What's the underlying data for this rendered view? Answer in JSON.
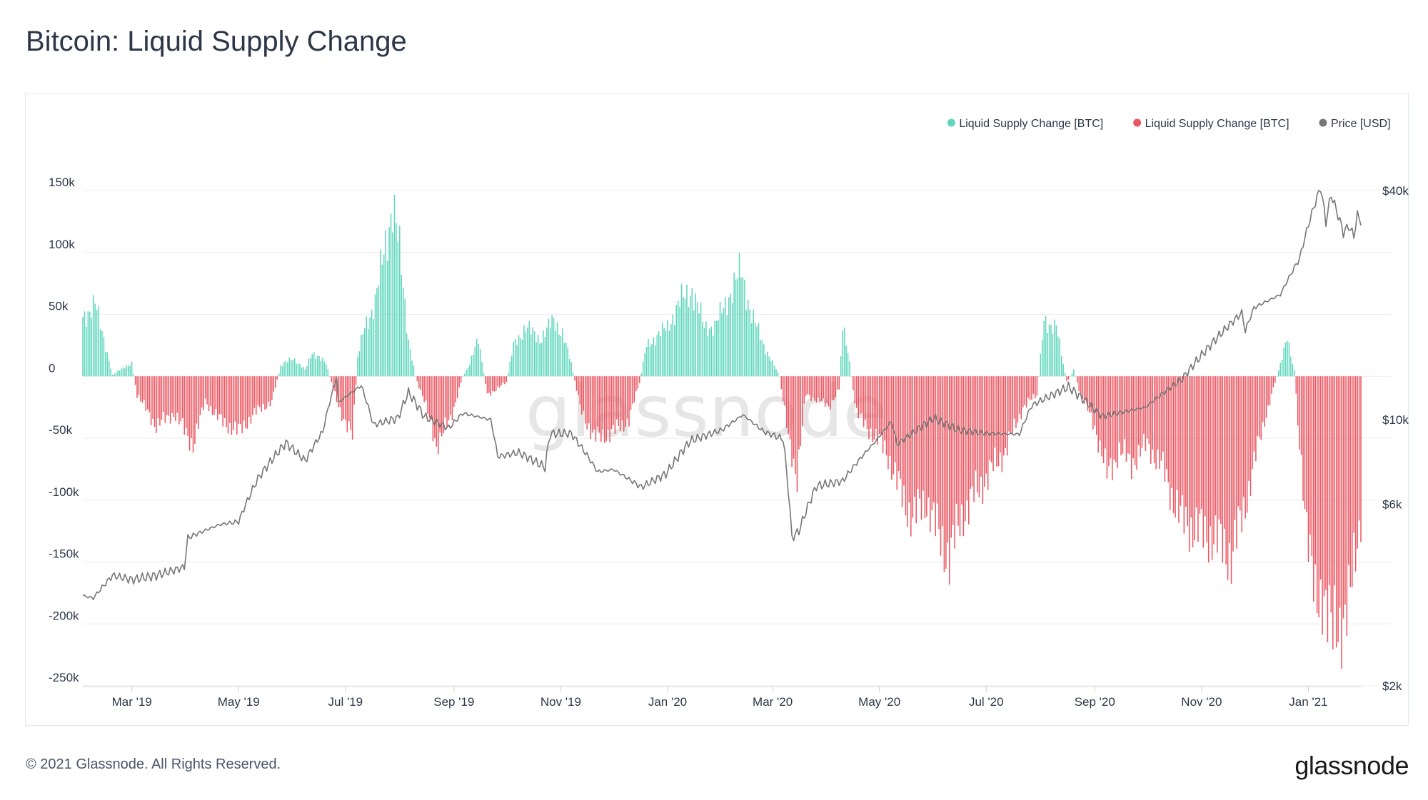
{
  "page": {
    "title": "Bitcoin: Liquid Supply Change",
    "footer": "© 2021 Glassnode. All Rights Reserved.",
    "logo": "glassnode",
    "watermark": "glassnode"
  },
  "colors": {
    "positive": "#5ed6bc",
    "negative": "#eb5560",
    "price": "#777777"
  },
  "chart_data": {
    "type": "bar",
    "title": "Bitcoin: Liquid Supply Change",
    "legend_position": "top-right",
    "grid": true,
    "series": [
      {
        "name": "Liquid Supply Change [BTC]",
        "color": "#5ed6bc",
        "kind": "bar",
        "sign": "positive"
      },
      {
        "name": "Liquid Supply Change [BTC]",
        "color": "#eb5560",
        "kind": "bar",
        "sign": "negative"
      },
      {
        "name": "Price [USD]",
        "color": "#777777",
        "kind": "line"
      }
    ],
    "y_left": {
      "ylim": [
        -250000,
        150000
      ],
      "ticks": [
        "150k",
        "100k",
        "50k",
        "0",
        "-50k",
        "-100k",
        "-150k",
        "-200k",
        "-250k"
      ]
    },
    "y_right": {
      "scale": "log",
      "ylim": [
        2000,
        40000
      ],
      "ticks": [
        "$40k",
        "$10k",
        "$6k",
        "$2k"
      ]
    },
    "x_ticks": [
      "Mar '19",
      "May '19",
      "Jul '19",
      "Sep '19",
      "Nov '19",
      "Jan '20",
      "Mar '20",
      "May '20",
      "Jul '20",
      "Sep '20",
      "Nov '20",
      "Jan '21"
    ],
    "x_range": [
      "2019-02-01",
      "2021-01-31"
    ],
    "liquid_supply_change_keypoints": [
      [
        "2019-02-01",
        48000
      ],
      [
        "2019-02-08",
        58000
      ],
      [
        "2019-02-14",
        25000
      ],
      [
        "2019-02-18",
        1000
      ],
      [
        "2019-02-25",
        8000
      ],
      [
        "2019-03-01",
        10000
      ],
      [
        "2019-03-04",
        -15000
      ],
      [
        "2019-03-15",
        -40000
      ],
      [
        "2019-03-25",
        -30000
      ],
      [
        "2019-04-05",
        -55000
      ],
      [
        "2019-04-12",
        -20000
      ],
      [
        "2019-04-20",
        -35000
      ],
      [
        "2019-05-01",
        -45000
      ],
      [
        "2019-05-10",
        -30000
      ],
      [
        "2019-05-20",
        -20000
      ],
      [
        "2019-05-25",
        8000
      ],
      [
        "2019-06-01",
        15000
      ],
      [
        "2019-06-08",
        5000
      ],
      [
        "2019-06-12",
        20000
      ],
      [
        "2019-06-20",
        10000
      ],
      [
        "2019-06-26",
        -20000
      ],
      [
        "2019-07-05",
        -50000
      ],
      [
        "2019-07-08",
        15000
      ],
      [
        "2019-07-12",
        40000
      ],
      [
        "2019-07-18",
        60000
      ],
      [
        "2019-07-23",
        100000
      ],
      [
        "2019-07-28",
        140000
      ],
      [
        "2019-08-01",
        100000
      ],
      [
        "2019-08-06",
        30000
      ],
      [
        "2019-08-10",
        0
      ],
      [
        "2019-08-15",
        -20000
      ],
      [
        "2019-08-22",
        -55000
      ],
      [
        "2019-08-30",
        -35000
      ],
      [
        "2019-09-06",
        0
      ],
      [
        "2019-09-10",
        10000
      ],
      [
        "2019-09-15",
        30000
      ],
      [
        "2019-09-20",
        -15000
      ],
      [
        "2019-10-01",
        -5000
      ],
      [
        "2019-10-05",
        25000
      ],
      [
        "2019-10-12",
        40000
      ],
      [
        "2019-10-20",
        30000
      ],
      [
        "2019-10-28",
        45000
      ],
      [
        "2019-11-02",
        35000
      ],
      [
        "2019-11-07",
        10000
      ],
      [
        "2019-11-12",
        -25000
      ],
      [
        "2019-11-20",
        -50000
      ],
      [
        "2019-12-01",
        -45000
      ],
      [
        "2019-12-10",
        -35000
      ],
      [
        "2019-12-16",
        -5000
      ],
      [
        "2019-12-20",
        25000
      ],
      [
        "2020-01-01",
        40000
      ],
      [
        "2020-01-08",
        60000
      ],
      [
        "2020-01-15",
        70000
      ],
      [
        "2020-01-22",
        40000
      ],
      [
        "2020-01-28",
        40000
      ],
      [
        "2020-02-05",
        65000
      ],
      [
        "2020-02-12",
        85000
      ],
      [
        "2020-02-18",
        50000
      ],
      [
        "2020-02-25",
        25000
      ],
      [
        "2020-03-05",
        0
      ],
      [
        "2020-03-10",
        -50000
      ],
      [
        "2020-03-15",
        -80000
      ],
      [
        "2020-03-20",
        -15000
      ],
      [
        "2020-03-28",
        -20000
      ],
      [
        "2020-04-02",
        -25000
      ],
      [
        "2020-04-08",
        -10000
      ],
      [
        "2020-04-10",
        45000
      ],
      [
        "2020-04-14",
        10000
      ],
      [
        "2020-04-18",
        -30000
      ],
      [
        "2020-04-26",
        -45000
      ],
      [
        "2020-05-05",
        -60000
      ],
      [
        "2020-05-12",
        -90000
      ],
      [
        "2020-05-20",
        -115000
      ],
      [
        "2020-05-28",
        -100000
      ],
      [
        "2020-06-04",
        -130000
      ],
      [
        "2020-06-10",
        -145000
      ],
      [
        "2020-06-18",
        -110000
      ],
      [
        "2020-06-25",
        -95000
      ],
      [
        "2020-07-02",
        -80000
      ],
      [
        "2020-07-12",
        -60000
      ],
      [
        "2020-07-22",
        -25000
      ],
      [
        "2020-07-30",
        -15000
      ],
      [
        "2020-08-03",
        45000
      ],
      [
        "2020-08-10",
        40000
      ],
      [
        "2020-08-16",
        -5000
      ],
      [
        "2020-08-20",
        5000
      ],
      [
        "2020-08-24",
        -15000
      ],
      [
        "2020-09-01",
        -40000
      ],
      [
        "2020-09-08",
        -80000
      ],
      [
        "2020-09-15",
        -60000
      ],
      [
        "2020-09-22",
        -70000
      ],
      [
        "2020-10-01",
        -55000
      ],
      [
        "2020-10-10",
        -75000
      ],
      [
        "2020-10-20",
        -115000
      ],
      [
        "2020-10-30",
        -125000
      ],
      [
        "2020-11-08",
        -130000
      ],
      [
        "2020-11-18",
        -145000
      ],
      [
        "2020-11-25",
        -110000
      ],
      [
        "2020-12-01",
        -70000
      ],
      [
        "2020-12-08",
        -30000
      ],
      [
        "2020-12-12",
        -10000
      ],
      [
        "2020-12-16",
        10000
      ],
      [
        "2020-12-20",
        30000
      ],
      [
        "2020-12-24",
        5000
      ],
      [
        "2020-12-26",
        -40000
      ],
      [
        "2021-01-01",
        -130000
      ],
      [
        "2021-01-05",
        -190000
      ],
      [
        "2021-01-10",
        -170000
      ],
      [
        "2021-01-15",
        -215000
      ],
      [
        "2021-01-20",
        -195000
      ],
      [
        "2021-01-25",
        -180000
      ],
      [
        "2021-01-31",
        -110000
      ]
    ],
    "price_keypoints": [
      [
        "2019-02-01",
        3450
      ],
      [
        "2019-02-07",
        3400
      ],
      [
        "2019-02-18",
        3900
      ],
      [
        "2019-03-01",
        3800
      ],
      [
        "2019-03-15",
        3900
      ],
      [
        "2019-03-31",
        4100
      ],
      [
        "2019-04-02",
        4900
      ],
      [
        "2019-04-20",
        5300
      ],
      [
        "2019-05-01",
        5400
      ],
      [
        "2019-05-12",
        7000
      ],
      [
        "2019-05-28",
        8700
      ],
      [
        "2019-06-08",
        7800
      ],
      [
        "2019-06-18",
        9300
      ],
      [
        "2019-06-26",
        12900
      ],
      [
        "2019-06-27",
        11100
      ],
      [
        "2019-07-10",
        12300
      ],
      [
        "2019-07-17",
        9700
      ],
      [
        "2019-07-31",
        10100
      ],
      [
        "2019-08-06",
        11800
      ],
      [
        "2019-08-15",
        10200
      ],
      [
        "2019-08-29",
        9500
      ],
      [
        "2019-09-06",
        10400
      ],
      [
        "2019-09-22",
        10000
      ],
      [
        "2019-09-26",
        8000
      ],
      [
        "2019-10-08",
        8200
      ],
      [
        "2019-10-23",
        7500
      ],
      [
        "2019-10-26",
        9200
      ],
      [
        "2019-11-07",
        9200
      ],
      [
        "2019-11-22",
        7300
      ],
      [
        "2019-12-01",
        7400
      ],
      [
        "2019-12-17",
        6650
      ],
      [
        "2019-12-31",
        7200
      ],
      [
        "2020-01-14",
        8800
      ],
      [
        "2020-02-01",
        9400
      ],
      [
        "2020-02-13",
        10300
      ],
      [
        "2020-02-25",
        9300
      ],
      [
        "2020-03-07",
        8900
      ],
      [
        "2020-03-12",
        4900
      ],
      [
        "2020-03-16",
        5100
      ],
      [
        "2020-03-26",
        6700
      ],
      [
        "2020-04-10",
        6900
      ],
      [
        "2020-04-29",
        8800
      ],
      [
        "2020-05-08",
        9900
      ],
      [
        "2020-05-11",
        8600
      ],
      [
        "2020-06-01",
        10100
      ],
      [
        "2020-06-15",
        9400
      ],
      [
        "2020-07-01",
        9200
      ],
      [
        "2020-07-20",
        9160
      ],
      [
        "2020-07-27",
        10900
      ],
      [
        "2020-08-17",
        12200
      ],
      [
        "2020-09-05",
        10200
      ],
      [
        "2020-09-30",
        10780
      ],
      [
        "2020-10-21",
        12800
      ],
      [
        "2020-11-05",
        15500
      ],
      [
        "2020-11-24",
        19100
      ],
      [
        "2020-11-26",
        17100
      ],
      [
        "2020-12-01",
        19700
      ],
      [
        "2020-12-16",
        21300
      ],
      [
        "2020-12-27",
        26500
      ],
      [
        "2021-01-08",
        40800
      ],
      [
        "2021-01-11",
        33000
      ],
      [
        "2021-01-14",
        39000
      ],
      [
        "2021-01-21",
        31000
      ],
      [
        "2021-01-24",
        32300
      ],
      [
        "2021-01-27",
        30400
      ],
      [
        "2021-01-29",
        34500
      ],
      [
        "2021-01-31",
        33200
      ]
    ]
  }
}
